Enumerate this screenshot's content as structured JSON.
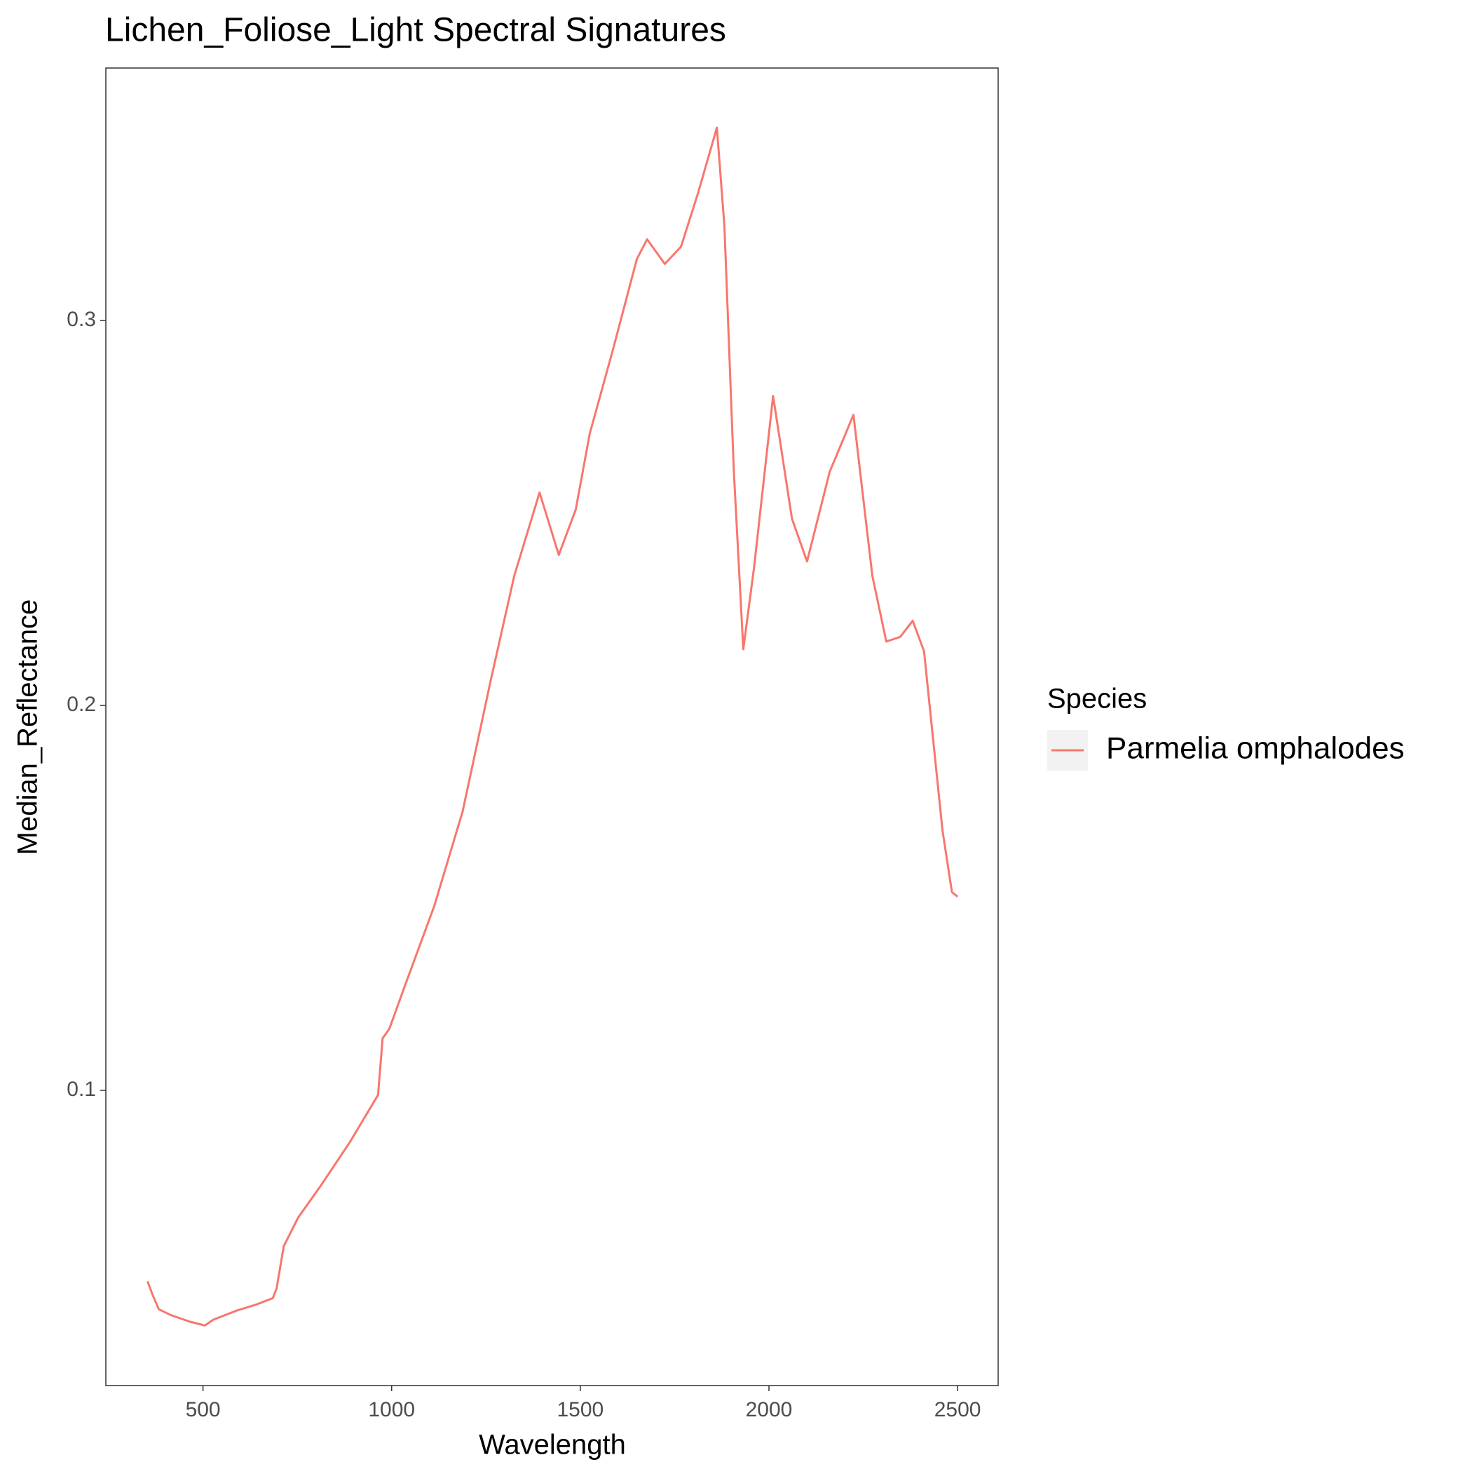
{
  "chart_data": {
    "type": "line",
    "title": "Lichen_Foliose_Light Spectral Signatures",
    "x_label": "Wavelength",
    "y_label": "Median_Reflectance",
    "legend_title": "Species",
    "legend_position": "right",
    "grid": false,
    "x": [
      353,
      365,
      383,
      415,
      465,
      505,
      527,
      590,
      640,
      685,
      695,
      714,
      752,
      814,
      889,
      964,
      976,
      994,
      1039,
      1113,
      1188,
      1263,
      1325,
      1392,
      1443,
      1488,
      1525,
      1587,
      1650,
      1677,
      1724,
      1767,
      1812,
      1862,
      1882,
      1907,
      1932,
      1961,
      2011,
      2061,
      2101,
      2161,
      2224,
      2274,
      2311,
      2348,
      2381,
      2411,
      2460,
      2485,
      2500
    ],
    "series": [
      {
        "name": "Parmelia omphalodes",
        "color": "#F8766D",
        "values": [
          0.0504,
          0.0472,
          0.0431,
          0.0416,
          0.0399,
          0.0389,
          0.0404,
          0.0428,
          0.0443,
          0.046,
          0.0485,
          0.0595,
          0.0669,
          0.0755,
          0.0865,
          0.0988,
          0.1135,
          0.116,
          0.1282,
          0.1479,
          0.1724,
          0.2067,
          0.2337,
          0.2553,
          0.2391,
          0.2509,
          0.2706,
          0.2926,
          0.316,
          0.3211,
          0.3147,
          0.3192,
          0.3331,
          0.3501,
          0.3245,
          0.2607,
          0.2146,
          0.2362,
          0.2804,
          0.2485,
          0.2374,
          0.2607,
          0.2755,
          0.2337,
          0.2166,
          0.2178,
          0.222,
          0.2141,
          0.1675,
          0.1515,
          0.1503
        ]
      }
    ],
    "xlim": [
      242.5,
      2607.5
    ],
    "xticks": [
      500,
      1000,
      1500,
      2000,
      2500
    ],
    "ylim": [
      0.0233,
      0.3656
    ],
    "yticks": [
      0.1,
      0.2,
      0.3
    ]
  }
}
